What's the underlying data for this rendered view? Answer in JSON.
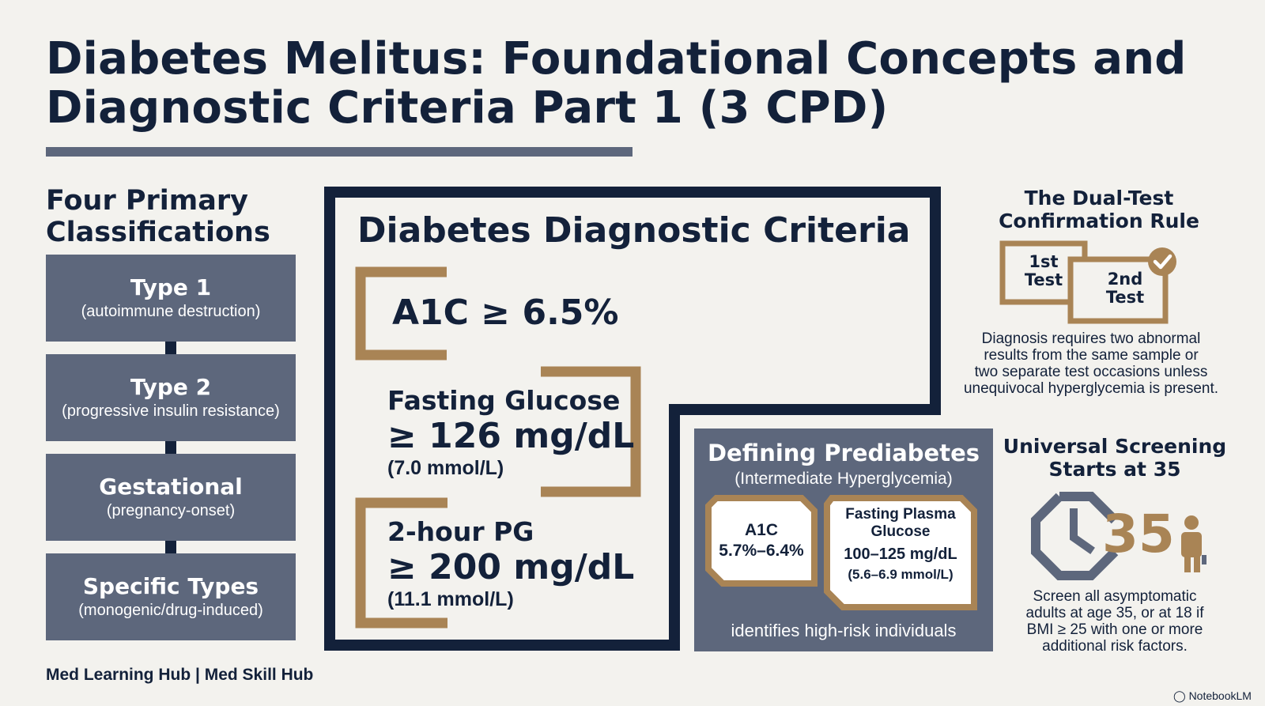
{
  "title": {
    "line1": "Diabetes Melitus: Foundational Concepts and",
    "line2": "Diagnostic Criteria Part 1 (3 CPD)"
  },
  "classifications": {
    "heading_line1": "Four Primary",
    "heading_line2": "Classifications",
    "items": [
      {
        "name": "Type 1",
        "sub": "(autoimmune destruction)"
      },
      {
        "name": "Type 2",
        "sub": "(progressive insulin resistance)"
      },
      {
        "name": "Gestational",
        "sub": "(pregnancy-onset)"
      },
      {
        "name": "Specific Types",
        "sub": "(monogenic/drug-induced)"
      }
    ]
  },
  "footer": {
    "credit": "Med Learning Hub | Med Skill Hub",
    "watermark": "NotebookLM"
  },
  "criteria": {
    "heading": "Diabetes Diagnostic Criteria",
    "a1c": "A1C ≥ 6.5%",
    "fasting": {
      "name": "Fasting Glucose",
      "value": "≥ 126 mg/dL",
      "unit": "(7.0 mmol/L)"
    },
    "pg2h": {
      "name": "2-hour PG",
      "value": "≥ 200 mg/dL",
      "unit": "(11.1 mmol/L)"
    }
  },
  "prediabetes": {
    "title": "Defining Prediabetes",
    "subtitle": "(Intermediate Hyperglycemia)",
    "a1c_label": "A1C",
    "a1c_value": "5.7%–6.4%",
    "fpg_label_line1": "Fasting Plasma",
    "fpg_label_line2": "Glucose",
    "fpg_value": "100–125 mg/dL",
    "fpg_unit": "(5.6–6.9 mmol/L)",
    "footer": "identifies high-risk individuals"
  },
  "dual_test": {
    "heading_line1": "The Dual-Test",
    "heading_line2": "Confirmation Rule",
    "first_line1": "1st",
    "first_line2": "Test",
    "second_line1": "2nd",
    "second_line2": "Test",
    "body_lines": [
      "Diagnosis requires two abnormal",
      "results from the same sample or",
      "two separate test occasions unless",
      "unequivocal hyperglycemia is present."
    ]
  },
  "screening": {
    "heading_line1": "Universal Screening",
    "heading_line2": "Starts at 35",
    "age_number": "35",
    "body_lines": [
      "Screen all asymptomatic",
      "adults at age 35, or at 18 if",
      "BMI ≥ 25 with one or more",
      "additional risk factors."
    ]
  },
  "colors": {
    "navy": "#13213a",
    "slate": "#5d677c",
    "bronze": "#a98455",
    "background": "#f3f2ee"
  }
}
